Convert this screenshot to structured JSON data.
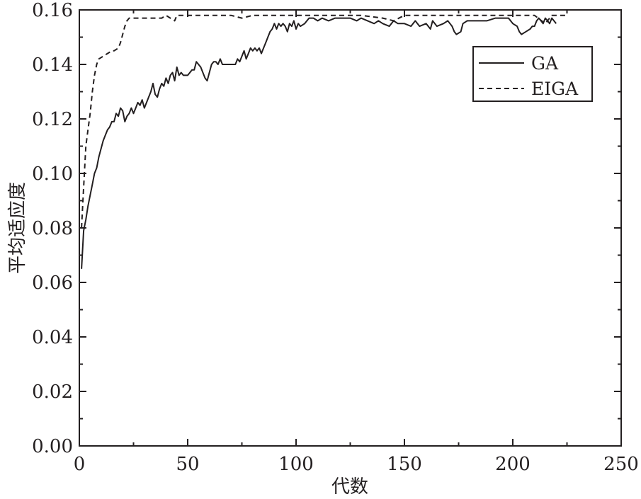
{
  "chart_data": {
    "type": "line",
    "xlabel": "代数",
    "ylabel": "平均适应度",
    "xlim": [
      0,
      250
    ],
    "ylim": [
      0,
      0.16
    ],
    "xticks": [
      "0",
      "50",
      "100",
      "150",
      "200",
      "250"
    ],
    "yticks": [
      "0.00",
      "0.02",
      "0.04",
      "0.06",
      "0.08",
      "0.10",
      "0.12",
      "0.14",
      "0.16"
    ],
    "grid": false,
    "legend_position": "top-right",
    "series": [
      {
        "name": "GA",
        "style": "solid",
        "color": "#231f20",
        "points": [
          [
            1,
            0.065
          ],
          [
            2,
            0.079
          ],
          [
            3,
            0.083
          ],
          [
            4,
            0.088
          ],
          [
            5,
            0.092
          ],
          [
            6,
            0.096
          ],
          [
            7,
            0.1
          ],
          [
            8,
            0.102
          ],
          [
            9,
            0.106
          ],
          [
            10,
            0.109
          ],
          [
            11,
            0.112
          ],
          [
            12,
            0.114
          ],
          [
            13,
            0.116
          ],
          [
            14,
            0.117
          ],
          [
            15,
            0.119
          ],
          [
            16,
            0.119
          ],
          [
            17,
            0.122
          ],
          [
            18,
            0.121
          ],
          [
            19,
            0.124
          ],
          [
            20,
            0.123
          ],
          [
            21,
            0.119
          ],
          [
            22,
            0.121
          ],
          [
            23,
            0.122
          ],
          [
            24,
            0.124
          ],
          [
            25,
            0.122
          ],
          [
            26,
            0.124
          ],
          [
            27,
            0.126
          ],
          [
            28,
            0.125
          ],
          [
            29,
            0.127
          ],
          [
            30,
            0.124
          ],
          [
            31,
            0.126
          ],
          [
            32,
            0.128
          ],
          [
            33,
            0.13
          ],
          [
            34,
            0.133
          ],
          [
            35,
            0.129
          ],
          [
            36,
            0.128
          ],
          [
            37,
            0.131
          ],
          [
            38,
            0.133
          ],
          [
            39,
            0.132
          ],
          [
            40,
            0.135
          ],
          [
            41,
            0.133
          ],
          [
            42,
            0.136
          ],
          [
            43,
            0.137
          ],
          [
            44,
            0.134
          ],
          [
            45,
            0.139
          ],
          [
            46,
            0.136
          ],
          [
            47,
            0.137
          ],
          [
            48,
            0.136
          ],
          [
            50,
            0.136
          ],
          [
            52,
            0.138
          ],
          [
            53,
            0.138
          ],
          [
            54,
            0.141
          ],
          [
            55,
            0.14
          ],
          [
            56,
            0.139
          ],
          [
            57,
            0.137
          ],
          [
            58,
            0.135
          ],
          [
            59,
            0.134
          ],
          [
            60,
            0.137
          ],
          [
            61,
            0.14
          ],
          [
            62,
            0.141
          ],
          [
            63,
            0.141
          ],
          [
            64,
            0.14
          ],
          [
            65,
            0.142
          ],
          [
            66,
            0.14
          ],
          [
            68,
            0.14
          ],
          [
            72,
            0.14
          ],
          [
            73,
            0.142
          ],
          [
            74,
            0.141
          ],
          [
            75,
            0.143
          ],
          [
            76,
            0.145
          ],
          [
            77,
            0.142
          ],
          [
            78,
            0.144
          ],
          [
            79,
            0.146
          ],
          [
            80,
            0.145
          ],
          [
            81,
            0.146
          ],
          [
            82,
            0.145
          ],
          [
            83,
            0.146
          ],
          [
            84,
            0.144
          ],
          [
            85,
            0.146
          ],
          [
            86,
            0.148
          ],
          [
            87,
            0.15
          ],
          [
            88,
            0.152
          ],
          [
            89,
            0.153
          ],
          [
            90,
            0.155
          ],
          [
            91,
            0.153
          ],
          [
            92,
            0.155
          ],
          [
            93,
            0.154
          ],
          [
            94,
            0.155
          ],
          [
            95,
            0.154
          ],
          [
            96,
            0.152
          ],
          [
            97,
            0.155
          ],
          [
            98,
            0.154
          ],
          [
            99,
            0.156
          ],
          [
            100,
            0.153
          ],
          [
            101,
            0.155
          ],
          [
            102,
            0.154
          ],
          [
            104,
            0.155
          ],
          [
            105,
            0.156
          ],
          [
            106,
            0.157
          ],
          [
            108,
            0.157
          ],
          [
            110,
            0.156
          ],
          [
            112,
            0.157
          ],
          [
            115,
            0.156
          ],
          [
            118,
            0.157
          ],
          [
            120,
            0.157
          ],
          [
            125,
            0.157
          ],
          [
            128,
            0.156
          ],
          [
            130,
            0.157
          ],
          [
            133,
            0.156
          ],
          [
            136,
            0.155
          ],
          [
            138,
            0.156
          ],
          [
            140,
            0.155
          ],
          [
            143,
            0.154
          ],
          [
            145,
            0.156
          ],
          [
            147,
            0.155
          ],
          [
            150,
            0.155
          ],
          [
            153,
            0.154
          ],
          [
            155,
            0.156
          ],
          [
            157,
            0.154
          ],
          [
            160,
            0.155
          ],
          [
            162,
            0.153
          ],
          [
            163,
            0.156
          ],
          [
            165,
            0.154
          ],
          [
            168,
            0.155
          ],
          [
            170,
            0.156
          ],
          [
            172,
            0.154
          ],
          [
            173,
            0.152
          ],
          [
            174,
            0.151
          ],
          [
            176,
            0.152
          ],
          [
            177,
            0.155
          ],
          [
            179,
            0.156
          ],
          [
            182,
            0.156
          ],
          [
            185,
            0.156
          ],
          [
            188,
            0.156
          ],
          [
            192,
            0.157
          ],
          [
            195,
            0.157
          ],
          [
            198,
            0.157
          ],
          [
            200,
            0.155
          ],
          [
            202,
            0.154
          ],
          [
            203,
            0.152
          ],
          [
            204,
            0.151
          ],
          [
            206,
            0.152
          ],
          [
            208,
            0.153
          ],
          [
            209,
            0.154
          ],
          [
            210,
            0.154
          ],
          [
            211,
            0.156
          ],
          [
            212,
            0.157
          ],
          [
            213,
            0.156
          ],
          [
            214,
            0.155
          ],
          [
            215,
            0.157
          ],
          [
            216,
            0.156
          ],
          [
            217,
            0.155
          ],
          [
            218,
            0.157
          ],
          [
            219,
            0.156
          ],
          [
            220,
            0.155
          ]
        ]
      },
      {
        "name": "EIGA",
        "style": "dashed",
        "color": "#231f20",
        "points": [
          [
            1,
            0.08
          ],
          [
            2,
            0.095
          ],
          [
            3,
            0.11
          ],
          [
            4,
            0.116
          ],
          [
            5,
            0.122
          ],
          [
            6,
            0.13
          ],
          [
            7,
            0.136
          ],
          [
            8,
            0.14
          ],
          [
            9,
            0.142
          ],
          [
            11,
            0.143
          ],
          [
            13,
            0.144
          ],
          [
            15,
            0.145
          ],
          [
            16,
            0.145
          ],
          [
            18,
            0.146
          ],
          [
            19,
            0.148
          ],
          [
            20,
            0.151
          ],
          [
            21,
            0.154
          ],
          [
            22,
            0.156
          ],
          [
            23,
            0.157
          ],
          [
            25,
            0.157
          ],
          [
            30,
            0.157
          ],
          [
            35,
            0.157
          ],
          [
            38,
            0.157
          ],
          [
            40,
            0.158
          ],
          [
            42,
            0.157
          ],
          [
            44,
            0.156
          ],
          [
            45,
            0.158
          ],
          [
            47,
            0.158
          ],
          [
            50,
            0.158
          ],
          [
            55,
            0.158
          ],
          [
            60,
            0.158
          ],
          [
            65,
            0.158
          ],
          [
            70,
            0.158
          ],
          [
            75,
            0.157
          ],
          [
            80,
            0.158
          ],
          [
            90,
            0.158
          ],
          [
            100,
            0.158
          ],
          [
            110,
            0.158
          ],
          [
            120,
            0.158
          ],
          [
            130,
            0.158
          ],
          [
            140,
            0.157
          ],
          [
            145,
            0.156
          ],
          [
            150,
            0.158
          ],
          [
            160,
            0.158
          ],
          [
            170,
            0.158
          ],
          [
            180,
            0.158
          ],
          [
            190,
            0.158
          ],
          [
            200,
            0.158
          ],
          [
            210,
            0.158
          ],
          [
            215,
            0.155
          ],
          [
            218,
            0.158
          ],
          [
            225,
            0.158
          ]
        ]
      }
    ]
  }
}
